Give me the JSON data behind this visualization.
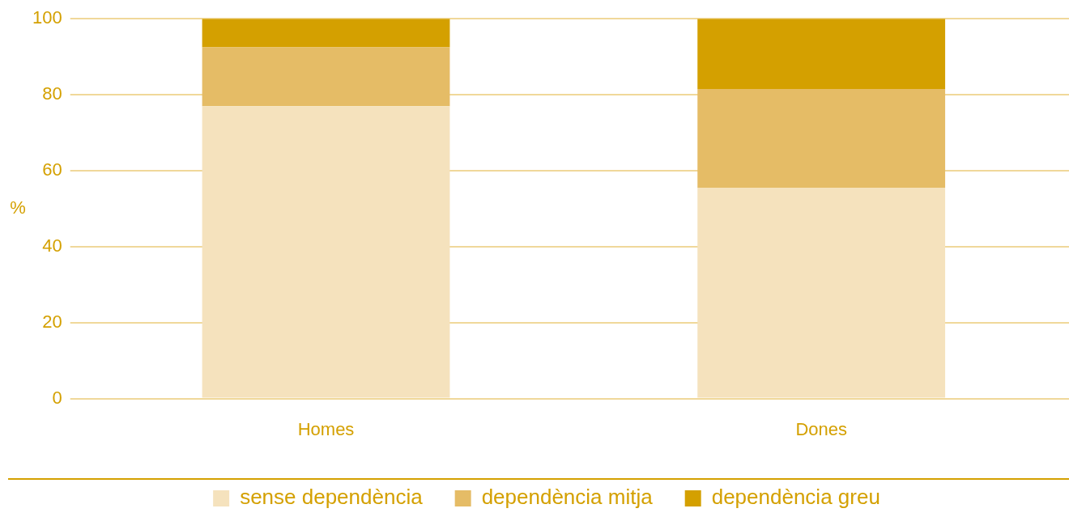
{
  "chart_data": {
    "type": "bar",
    "stacked": true,
    "ylabel": "%",
    "categories": [
      "Homes",
      "Dones"
    ],
    "series": [
      {
        "name": "sense dependència",
        "color": "#f5e2bd",
        "values": [
          77,
          55.5
        ]
      },
      {
        "name": "dependència mitja",
        "color": "#e5bc66",
        "values": [
          15.5,
          26
        ]
      },
      {
        "name": "dependència greu",
        "color": "#d4a000",
        "values": [
          7.5,
          18.5
        ]
      }
    ],
    "ylim": [
      0,
      100
    ],
    "yticks": [
      0,
      20,
      40,
      60,
      80,
      100
    ],
    "grid": "y",
    "legend": "bottom"
  }
}
